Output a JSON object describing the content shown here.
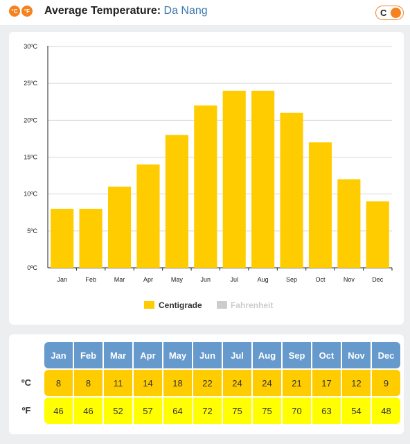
{
  "header": {
    "logo_c": "°C",
    "logo_f": "°F",
    "title_label": "Average Temperature:",
    "city": "Da Nang",
    "toggle_label": "C"
  },
  "chart_data": {
    "type": "bar",
    "categories": [
      "Jan",
      "Feb",
      "Mar",
      "Apr",
      "May",
      "Jun",
      "Jul",
      "Aug",
      "Sep",
      "Oct",
      "Nov",
      "Dec"
    ],
    "series": [
      {
        "name": "Centigrade",
        "values": [
          8,
          8,
          11,
          14,
          18,
          22,
          24,
          24,
          21,
          17,
          12,
          9
        ],
        "color": "#ffcc00"
      },
      {
        "name": "Fahrenheit",
        "values": [
          46,
          46,
          52,
          57,
          64,
          72,
          75,
          75,
          70,
          63,
          54,
          48
        ],
        "color": "#cccccc"
      }
    ],
    "yticks": [
      "0ºC",
      "5ºC",
      "10ºC",
      "15ºC",
      "20ºC",
      "25ºC",
      "30ºC"
    ],
    "ylim": [
      0,
      30
    ],
    "grid": true,
    "legend_placement": "bottom-center"
  },
  "table": {
    "months": [
      "Jan",
      "Feb",
      "Mar",
      "Apr",
      "May",
      "Jun",
      "Jul",
      "Aug",
      "Sep",
      "Oct",
      "Nov",
      "Dec"
    ],
    "c_label": "ºC",
    "f_label": "ºF",
    "c_values": [
      "8",
      "8",
      "11",
      "14",
      "18",
      "22",
      "24",
      "24",
      "21",
      "17",
      "12",
      "9"
    ],
    "f_values": [
      "46",
      "46",
      "52",
      "57",
      "64",
      "72",
      "75",
      "75",
      "70",
      "63",
      "54",
      "48"
    ]
  }
}
